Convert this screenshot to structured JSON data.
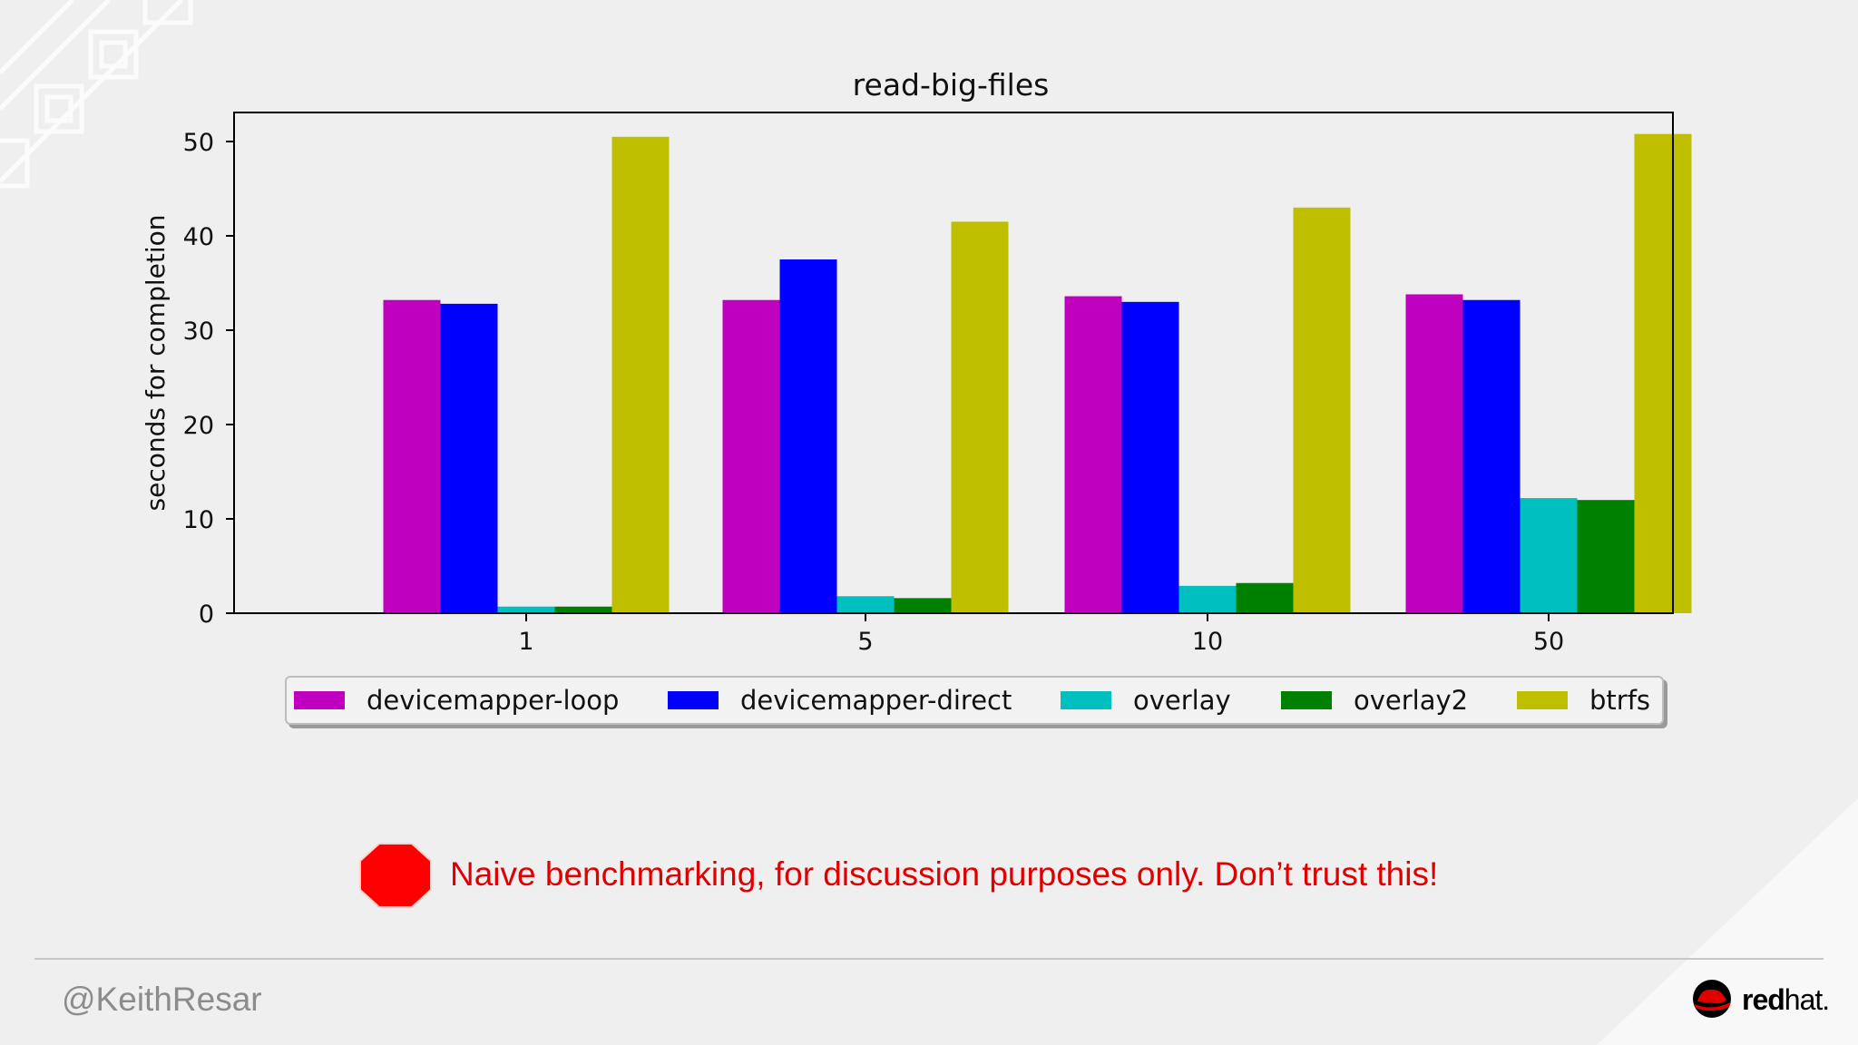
{
  "chart_data": {
    "type": "bar",
    "title": "read-big-files",
    "xlabel": "",
    "ylabel": "seconds for completion",
    "categories": [
      "1",
      "5",
      "10",
      "50"
    ],
    "ylim": [
      0,
      53
    ],
    "yticks": [
      0,
      10,
      20,
      30,
      40,
      50
    ],
    "grid": false,
    "legend_position": "bottom",
    "series": [
      {
        "name": "devicemapper-loop",
        "color": "#bf00bf",
        "values": [
          33.2,
          33.2,
          33.6,
          33.8
        ]
      },
      {
        "name": "devicemapper-direct",
        "color": "#0000ff",
        "values": [
          32.8,
          37.5,
          33.0,
          33.2
        ]
      },
      {
        "name": "overlay",
        "color": "#00bfbf",
        "values": [
          0.7,
          1.8,
          2.9,
          12.2
        ]
      },
      {
        "name": "overlay2",
        "color": "#008000",
        "values": [
          0.7,
          1.6,
          3.2,
          12.0
        ]
      },
      {
        "name": "btrfs",
        "color": "#bfbf00",
        "values": [
          50.5,
          41.5,
          43.0,
          50.8
        ]
      }
    ]
  },
  "warning": {
    "text": "Naive benchmarking, for discussion purposes only.  Don’t trust this!",
    "icon": "stop-sign-icon",
    "color": "#e00000"
  },
  "footer": {
    "handle": "@KeithResar",
    "brand_bold": "red",
    "brand_light": "hat."
  }
}
